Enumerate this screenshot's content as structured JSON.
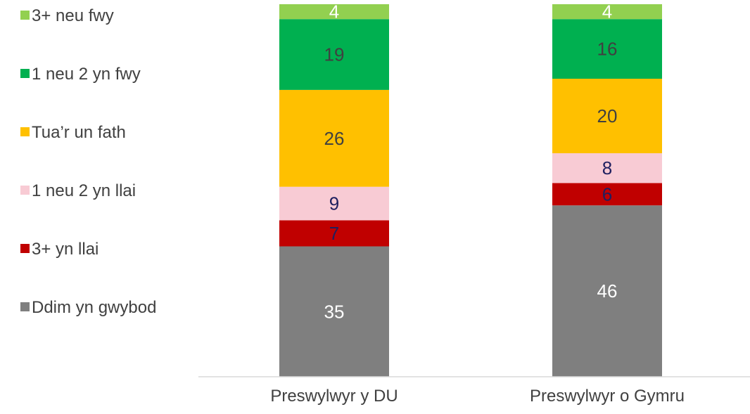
{
  "chart_data": {
    "type": "bar",
    "stacked": true,
    "categories": [
      "Preswylwyr y DU",
      "Preswylwyr o Gymru"
    ],
    "series": [
      {
        "name": "Ddim yn gwybod",
        "values": [
          35,
          46
        ],
        "color": "#7f7f7f",
        "label_color": "#ffffff"
      },
      {
        "name": "3+ yn llai",
        "values": [
          7,
          6
        ],
        "color": "#c00000",
        "label_color": "#1f1f5f"
      },
      {
        "name": "1 neu 2 yn llai",
        "values": [
          9,
          8
        ],
        "color": "#f8cbd4",
        "label_color": "#1f1f5f"
      },
      {
        "name": "Tua’r un fath",
        "values": [
          26,
          20
        ],
        "color": "#ffc000",
        "label_color": "#404040"
      },
      {
        "name": "1 neu 2 yn fwy",
        "values": [
          19,
          16
        ],
        "color": "#00b050",
        "label_color": "#404040"
      },
      {
        "name": "3+ neu fwy",
        "values": [
          4,
          4
        ],
        "color": "#92d050",
        "label_color": "#ffffff"
      }
    ],
    "ylim": [
      0,
      100
    ],
    "title": "",
    "xlabel": "",
    "ylabel": "",
    "grid": false,
    "legend_position": "left"
  }
}
